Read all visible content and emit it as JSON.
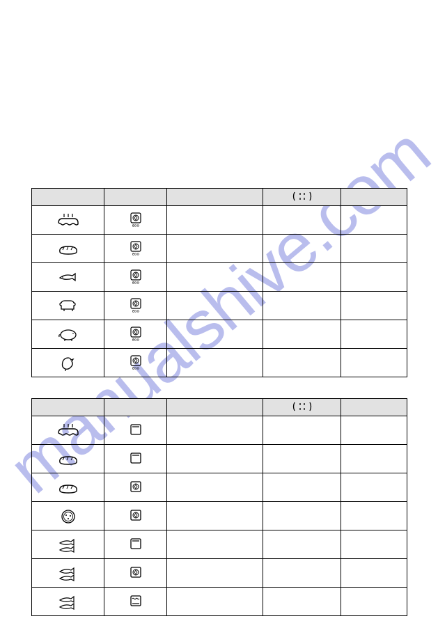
{
  "watermark": "manualshive.com",
  "table1": {
    "header_col4": "",
    "rows": [
      {
        "food": "cake",
        "func": "eco"
      },
      {
        "food": "bread",
        "func": "eco"
      },
      {
        "food": "fish1",
        "func": "eco"
      },
      {
        "food": "cow",
        "func": "eco"
      },
      {
        "food": "pig",
        "func": "eco"
      },
      {
        "food": "chicken",
        "func": "eco"
      }
    ]
  },
  "table2": {
    "header_col4": "",
    "rows": [
      {
        "food": "cake",
        "func": "conv"
      },
      {
        "food": "bread",
        "func": "conv"
      },
      {
        "food": "bread",
        "func": "fan"
      },
      {
        "food": "pizza",
        "func": "fan"
      },
      {
        "food": "fish2",
        "func": "conv"
      },
      {
        "food": "fish2",
        "func": "fan"
      },
      {
        "food": "fish2",
        "func": "grill"
      }
    ]
  },
  "colors": {
    "border": "#000000",
    "header_bg": "#e2e2e2",
    "watermark": "#8088e0"
  }
}
